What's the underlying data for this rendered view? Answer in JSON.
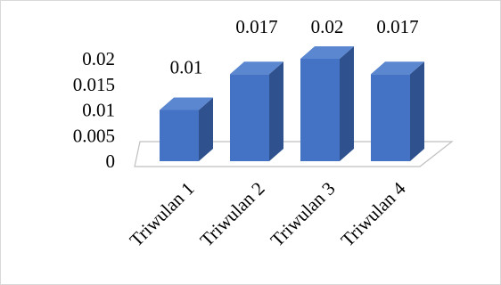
{
  "chart_data": {
    "type": "bar",
    "style": "3d-column",
    "title": "",
    "xlabel": "",
    "ylabel": "",
    "categories": [
      "Triwulan 1",
      "Triwulan 2",
      "Triwulan 3",
      "Triwulan 4"
    ],
    "values": [
      0.01,
      0.017,
      0.02,
      0.017
    ],
    "data_labels": [
      "0.01",
      "0.017",
      "0.02",
      "0.017"
    ],
    "y_ticks": [
      "0",
      "0.005",
      "0.01",
      "0.015",
      "0.02"
    ],
    "ylim": [
      0,
      0.02
    ],
    "grid": false,
    "legend": "none",
    "colors": {
      "front": "#4472C4",
      "side": "#2F528F",
      "top": "#5B86D0",
      "floor": "#bfbfbf"
    }
  }
}
